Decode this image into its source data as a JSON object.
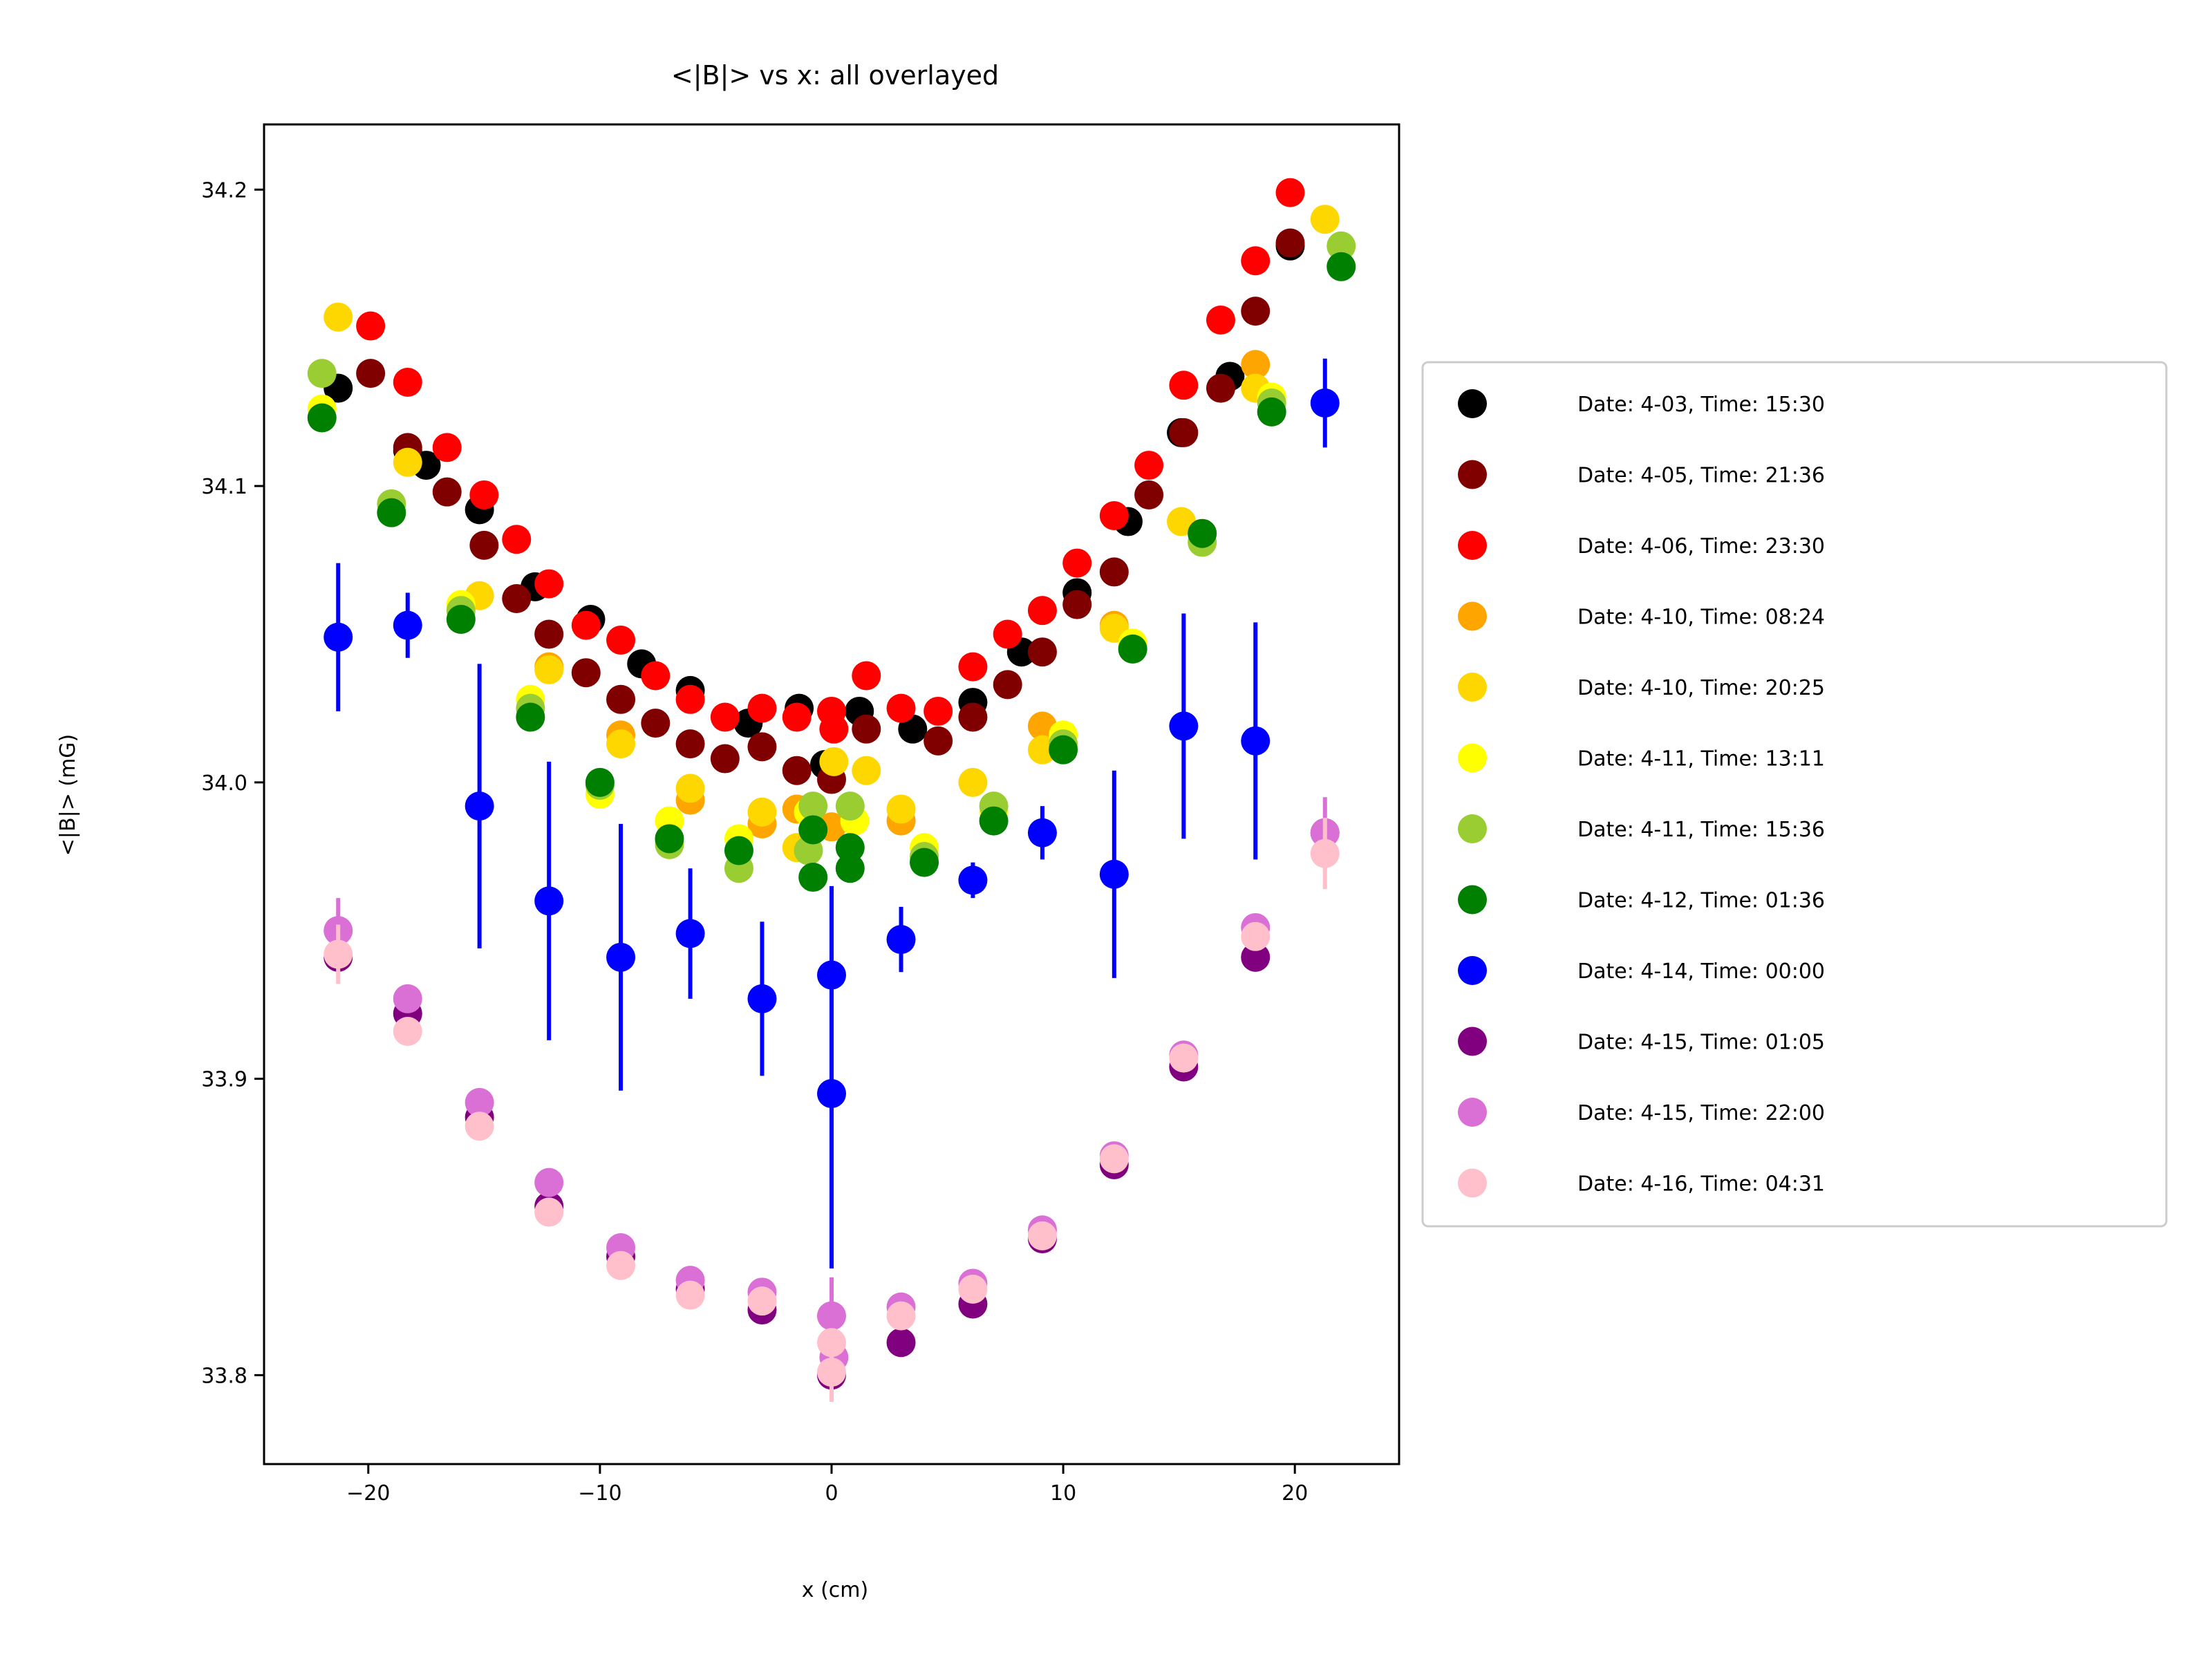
{
  "chart_data": {
    "type": "scatter",
    "title": "<|B|> vs x: all overlayed",
    "xlabel": "x (cm)",
    "ylabel": "<|B|> (mG)",
    "xlim": [
      -24.5,
      24.5
    ],
    "ylim": [
      33.77,
      34.222
    ],
    "xticks": [
      -20,
      -10,
      0,
      10,
      20
    ],
    "xtick_labels": [
      "−20",
      "−10",
      "0",
      "10",
      "20"
    ],
    "yticks": [
      33.8,
      33.9,
      34.0,
      34.1,
      34.2
    ],
    "ytick_labels": [
      "33.8",
      "33.9",
      "34.0",
      "34.1",
      "34.2"
    ],
    "grid": false,
    "legend_placement": "outside-right",
    "series": [
      {
        "name": "Date: 4-03, Time: 15:30",
        "color": "#000000",
        "points": [
          [
            -21.3,
            34.133
          ],
          [
            -18.3,
            34.112
          ],
          [
            -17.5,
            34.107
          ],
          [
            -15.2,
            34.092
          ],
          [
            -12.8,
            34.066
          ],
          [
            -10.4,
            34.055
          ],
          [
            -8.2,
            34.04
          ],
          [
            -6.1,
            34.031
          ],
          [
            -3.6,
            34.02
          ],
          [
            -1.4,
            34.025
          ],
          [
            -0.3,
            34.006
          ],
          [
            1.2,
            34.024
          ],
          [
            3.5,
            34.018
          ],
          [
            6.1,
            34.027
          ],
          [
            8.2,
            34.044
          ],
          [
            10.6,
            34.064
          ],
          [
            12.8,
            34.088
          ],
          [
            15.1,
            34.118
          ],
          [
            17.2,
            34.137
          ],
          [
            19.8,
            34.181
          ]
        ]
      },
      {
        "name": "Date: 4-05, Time: 21:36",
        "color": "#800000",
        "points": [
          [
            -19.9,
            34.138
          ],
          [
            -18.3,
            34.113
          ],
          [
            -16.6,
            34.098
          ],
          [
            -15.0,
            34.08
          ],
          [
            -13.6,
            34.062
          ],
          [
            -12.2,
            34.05
          ],
          [
            -10.6,
            34.037
          ],
          [
            -9.1,
            34.028
          ],
          [
            -7.6,
            34.02
          ],
          [
            -6.1,
            34.013
          ],
          [
            -4.6,
            34.008
          ],
          [
            -3.0,
            34.012
          ],
          [
            -1.5,
            34.004
          ],
          [
            0.0,
            34.001
          ],
          [
            1.5,
            34.018
          ],
          [
            4.6,
            34.014
          ],
          [
            6.1,
            34.022
          ],
          [
            7.6,
            34.033
          ],
          [
            9.1,
            34.044
          ],
          [
            10.6,
            34.06
          ],
          [
            12.2,
            34.071
          ],
          [
            13.7,
            34.097
          ],
          [
            15.2,
            34.118
          ],
          [
            16.8,
            34.133
          ],
          [
            18.3,
            34.159
          ],
          [
            19.8,
            34.182
          ]
        ]
      },
      {
        "name": "Date: 4-06, Time: 23:30",
        "color": "#ff0000",
        "points": [
          [
            -19.9,
            34.154
          ],
          [
            -18.3,
            34.135
          ],
          [
            -16.6,
            34.113
          ],
          [
            -15.0,
            34.097
          ],
          [
            -13.6,
            34.082
          ],
          [
            -12.2,
            34.067
          ],
          [
            -10.6,
            34.053
          ],
          [
            -9.1,
            34.048
          ],
          [
            -7.6,
            34.036
          ],
          [
            -6.1,
            34.028
          ],
          [
            -4.6,
            34.022
          ],
          [
            -3.0,
            34.025
          ],
          [
            -1.5,
            34.022
          ],
          [
            0.0,
            34.024
          ],
          [
            0.1,
            34.018
          ],
          [
            1.5,
            34.036
          ],
          [
            3.0,
            34.025
          ],
          [
            4.6,
            34.024
          ],
          [
            6.1,
            34.039
          ],
          [
            7.6,
            34.05
          ],
          [
            9.1,
            34.058
          ],
          [
            10.6,
            34.074
          ],
          [
            12.2,
            34.09
          ],
          [
            13.7,
            34.107
          ],
          [
            15.2,
            34.134
          ],
          [
            16.8,
            34.156
          ],
          [
            18.3,
            34.176
          ],
          [
            19.8,
            34.199
          ]
        ]
      },
      {
        "name": "Date: 4-10, Time: 08:24",
        "color": "#ffa500",
        "points": [
          [
            -12.2,
            34.039
          ],
          [
            -9.1,
            34.016
          ],
          [
            -6.1,
            33.994
          ],
          [
            -3.0,
            33.986
          ],
          [
            -1.5,
            33.991
          ],
          [
            0.0,
            33.985
          ],
          [
            3.0,
            33.987
          ],
          [
            9.1,
            34.019
          ],
          [
            12.2,
            34.053
          ],
          [
            18.3,
            34.141
          ]
        ]
      },
      {
        "name": "Date: 4-10, Time: 20:25",
        "color": "#ffd700",
        "points": [
          [
            -21.3,
            34.157
          ],
          [
            -18.3,
            34.108
          ],
          [
            -15.2,
            34.063
          ],
          [
            -12.2,
            34.038
          ],
          [
            -9.1,
            34.013
          ],
          [
            -6.1,
            33.998
          ],
          [
            -3.0,
            33.99
          ],
          [
            -1.5,
            33.978
          ],
          [
            0.1,
            34.007
          ],
          [
            1.5,
            34.004
          ],
          [
            3.0,
            33.991
          ],
          [
            6.1,
            34.0
          ],
          [
            9.1,
            34.011
          ],
          [
            12.2,
            34.052
          ],
          [
            15.1,
            34.088
          ],
          [
            18.3,
            34.133
          ],
          [
            21.3,
            34.19
          ]
        ]
      },
      {
        "name": "Date: 4-11, Time: 13:11",
        "color": "#ffff00",
        "points": [
          [
            -22.0,
            34.126
          ],
          [
            -16.0,
            34.06
          ],
          [
            -13.0,
            34.028
          ],
          [
            -10.0,
            33.996
          ],
          [
            -7.0,
            33.987
          ],
          [
            -4.0,
            33.981
          ],
          [
            -1.0,
            33.99
          ],
          [
            1.0,
            33.987
          ],
          [
            4.0,
            33.978
          ],
          [
            7.0,
            33.99
          ],
          [
            10.0,
            34.016
          ],
          [
            13.0,
            34.047
          ],
          [
            16.0,
            34.084
          ],
          [
            19.0,
            34.13
          ]
        ]
      },
      {
        "name": "Date: 4-11, Time: 15:36",
        "color": "#9acd32",
        "points": [
          [
            -22.0,
            34.138
          ],
          [
            -19.0,
            34.094
          ],
          [
            -16.0,
            34.058
          ],
          [
            -13.0,
            34.025
          ],
          [
            -10.0,
            33.999
          ],
          [
            -7.0,
            33.979
          ],
          [
            -4.0,
            33.971
          ],
          [
            -1.0,
            33.977
          ],
          [
            -0.8,
            33.992
          ],
          [
            0.8,
            33.992
          ],
          [
            4.0,
            33.975
          ],
          [
            7.0,
            33.992
          ],
          [
            10.0,
            34.013
          ],
          [
            13.0,
            34.045
          ],
          [
            16.0,
            34.081
          ],
          [
            19.0,
            34.128
          ],
          [
            22.0,
            34.181
          ]
        ]
      },
      {
        "name": "Date: 4-12, Time: 01:36",
        "color": "#008000",
        "points": [
          [
            -22.0,
            34.123
          ],
          [
            -19.0,
            34.091
          ],
          [
            -16.0,
            34.055
          ],
          [
            -13.0,
            34.022
          ],
          [
            -10.0,
            34.0
          ],
          [
            -7.0,
            33.981
          ],
          [
            -4.0,
            33.977
          ],
          [
            -0.8,
            33.984
          ],
          [
            -0.8,
            33.968
          ],
          [
            0.8,
            33.978
          ],
          [
            0.8,
            33.971
          ],
          [
            4.0,
            33.973
          ],
          [
            7.0,
            33.987
          ],
          [
            10.0,
            34.011
          ],
          [
            13.0,
            34.045
          ],
          [
            16.0,
            34.084
          ],
          [
            19.0,
            34.125
          ],
          [
            22.0,
            34.174
          ]
        ]
      },
      {
        "name": "Date: 4-14, Time: 00:00",
        "color": "#0000ff",
        "points": [
          [
            -21.3,
            34.049
          ],
          [
            -18.3,
            34.053
          ],
          [
            -15.2,
            33.992
          ],
          [
            -12.2,
            33.96
          ],
          [
            -9.1,
            33.941
          ],
          [
            -6.1,
            33.949
          ],
          [
            -3.0,
            33.927
          ],
          [
            0.0,
            33.935
          ],
          [
            0.0,
            33.895
          ],
          [
            3.0,
            33.947
          ],
          [
            6.1,
            33.967
          ],
          [
            9.1,
            33.983
          ],
          [
            12.2,
            33.969
          ],
          [
            15.2,
            34.019
          ],
          [
            18.3,
            34.014
          ],
          [
            21.3,
            34.128
          ]
        ],
        "yerr": [
          0.025,
          0.011,
          0.048,
          0.047,
          0.045,
          0.022,
          0.026,
          0.03,
          0.059,
          0.011,
          0.006,
          0.009,
          0.035,
          0.038,
          0.04,
          0.015
        ]
      },
      {
        "name": "Date: 4-15, Time: 01:05",
        "color": "#800080",
        "points": [
          [
            -21.3,
            33.941
          ],
          [
            -18.3,
            33.922
          ],
          [
            -15.2,
            33.887
          ],
          [
            -12.2,
            33.857
          ],
          [
            -9.1,
            33.84
          ],
          [
            -6.1,
            33.829
          ],
          [
            -3.0,
            33.822
          ],
          [
            0.0,
            33.8
          ],
          [
            3.0,
            33.811
          ],
          [
            6.1,
            33.824
          ],
          [
            9.1,
            33.846
          ],
          [
            12.2,
            33.871
          ],
          [
            15.2,
            33.904
          ],
          [
            18.3,
            33.941
          ],
          [
            21.3,
            33.983
          ]
        ]
      },
      {
        "name": "Date: 4-15, Time: 22:00",
        "color": "#da70d6",
        "points": [
          [
            -21.3,
            33.95
          ],
          [
            -18.3,
            33.927
          ],
          [
            -15.2,
            33.892
          ],
          [
            -12.2,
            33.865
          ],
          [
            -9.1,
            33.843
          ],
          [
            -6.1,
            33.832
          ],
          [
            -3.0,
            33.828
          ],
          [
            0.0,
            33.82
          ],
          [
            0.1,
            33.806
          ],
          [
            3.0,
            33.823
          ],
          [
            6.1,
            33.831
          ],
          [
            9.1,
            33.849
          ],
          [
            12.2,
            33.874
          ],
          [
            15.2,
            33.908
          ],
          [
            18.3,
            33.951
          ],
          [
            21.3,
            33.983
          ]
        ],
        "yerr": [
          0.011,
          0,
          0,
          0,
          0,
          0,
          0,
          0.013,
          0,
          0,
          0,
          0,
          0,
          0,
          0,
          0.012
        ]
      },
      {
        "name": "Date: 4-16, Time: 04:31",
        "color": "#ffc0cb",
        "points": [
          [
            -21.3,
            33.942
          ],
          [
            -18.3,
            33.916
          ],
          [
            -15.2,
            33.884
          ],
          [
            -12.2,
            33.855
          ],
          [
            -9.1,
            33.837
          ],
          [
            -6.1,
            33.827
          ],
          [
            -3.0,
            33.825
          ],
          [
            0.0,
            33.811
          ],
          [
            0.0,
            33.801
          ],
          [
            3.0,
            33.82
          ],
          [
            6.1,
            33.829
          ],
          [
            9.1,
            33.847
          ],
          [
            12.2,
            33.873
          ],
          [
            15.2,
            33.907
          ],
          [
            18.3,
            33.948
          ],
          [
            21.3,
            33.976
          ]
        ],
        "yerr": [
          0.01,
          0,
          0,
          0,
          0,
          0,
          0,
          0,
          0.01,
          0,
          0,
          0,
          0,
          0,
          0,
          0.012
        ]
      }
    ]
  }
}
